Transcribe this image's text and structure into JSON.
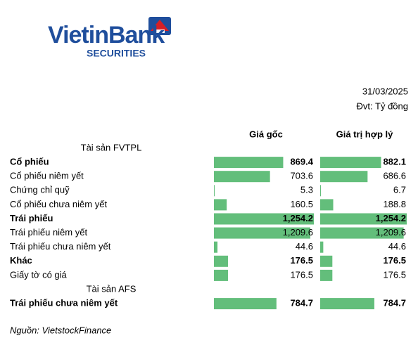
{
  "logo": {
    "name": "VietinBank",
    "sub": "SECURITIES"
  },
  "date": "31/03/2025",
  "unit": "Đvt: Tỷ đồng",
  "table": {
    "columns": [
      "Giá gốc",
      "Giá trị hợp lý"
    ],
    "color": "#63be7b",
    "rows": [
      {
        "section": "Tài sản FVTPL"
      },
      {
        "label": "Cổ phiếu",
        "bold": true,
        "values": [
          869.4,
          882.1
        ]
      },
      {
        "label": "Cổ phiếu niêm yết",
        "values": [
          703.6,
          686.6
        ]
      },
      {
        "label": "Chứng chỉ quỹ",
        "values": [
          5.3,
          6.7
        ]
      },
      {
        "label": "Cổ phiếu chưa niêm yết",
        "values": [
          160.5,
          188.8
        ]
      },
      {
        "label": "Trái phiếu",
        "bold": true,
        "values": [
          1254.2,
          1254.2
        ],
        "value_labels": [
          "1,254.2",
          "1,254.2"
        ]
      },
      {
        "label": "Trái phiếu niêm yết",
        "values": [
          1209.6,
          1209.6
        ],
        "value_labels": [
          "1,209.6",
          "1,209.6"
        ]
      },
      {
        "label": "Trái phiếu chưa niêm yết",
        "values": [
          44.6,
          44.6
        ]
      },
      {
        "label": "Khác",
        "bold": true,
        "values": [
          176.5,
          176.5
        ]
      },
      {
        "label": "Giấy tờ có giá",
        "values": [
          176.5,
          176.5
        ]
      },
      {
        "section": "Tài sản AFS"
      },
      {
        "label": "Trái phiếu chưa niêm yết",
        "bold": true,
        "values": [
          784.7,
          784.7
        ]
      }
    ]
  },
  "source": "Nguồn: VietstockFinance"
}
